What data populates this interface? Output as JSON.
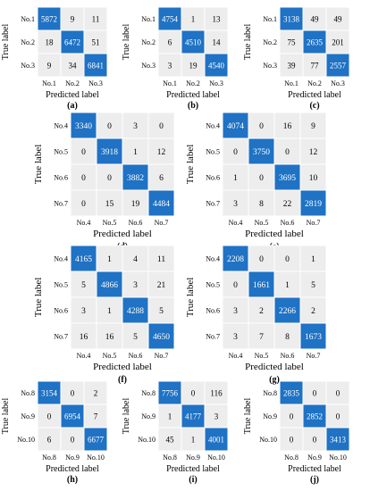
{
  "chart_data": [
    {
      "type": "heatmap",
      "caption": "(a)",
      "xlabel": "Predicted label",
      "ylabel": "True label",
      "x_categories": [
        "No.1",
        "No.2",
        "No.3"
      ],
      "y_categories": [
        "No.1",
        "No.2",
        "No.3"
      ],
      "values": [
        [
          5872,
          9,
          11
        ],
        [
          18,
          6472,
          51
        ],
        [
          9,
          34,
          6841
        ]
      ]
    },
    {
      "type": "heatmap",
      "caption": "(b)",
      "xlabel": "Predicted label",
      "ylabel": "True label",
      "x_categories": [
        "No.1",
        "No.2",
        "No.3"
      ],
      "y_categories": [
        "No.1",
        "No.2",
        "No.3"
      ],
      "values": [
        [
          4754,
          1,
          13
        ],
        [
          6,
          4510,
          14
        ],
        [
          3,
          19,
          4540
        ]
      ]
    },
    {
      "type": "heatmap",
      "caption": "(c)",
      "xlabel": "Predicted label",
      "ylabel": "True label",
      "x_categories": [
        "No.1",
        "No.2",
        "No.3"
      ],
      "y_categories": [
        "No.1",
        "No.2",
        "No.3"
      ],
      "values": [
        [
          3138,
          49,
          49
        ],
        [
          75,
          2635,
          201
        ],
        [
          39,
          77,
          2557
        ]
      ]
    },
    {
      "type": "heatmap",
      "caption": "(d)",
      "xlabel": "Predicted label",
      "ylabel": "True label",
      "x_categories": [
        "No.4",
        "No.5",
        "No.6",
        "No.7"
      ],
      "y_categories": [
        "No.4",
        "No.5",
        "No.6",
        "No.7"
      ],
      "values": [
        [
          3340,
          0,
          3,
          0
        ],
        [
          0,
          3918,
          1,
          12
        ],
        [
          0,
          0,
          3882,
          6
        ],
        [
          0,
          15,
          19,
          4484
        ]
      ]
    },
    {
      "type": "heatmap",
      "caption": "(e)",
      "xlabel": "Predicted label",
      "ylabel": "True label",
      "x_categories": [
        "No.4",
        "No.5",
        "No.6",
        "No.7"
      ],
      "y_categories": [
        "No.4",
        "No.5",
        "No.6",
        "No.7"
      ],
      "values": [
        [
          4074,
          0,
          16,
          9
        ],
        [
          0,
          3750,
          0,
          12
        ],
        [
          1,
          0,
          3695,
          10
        ],
        [
          3,
          8,
          22,
          2819
        ]
      ]
    },
    {
      "type": "heatmap",
      "caption": "(f)",
      "xlabel": "Predicted label",
      "ylabel": "True label",
      "x_categories": [
        "No.4",
        "No.5",
        "No.6",
        "No.7"
      ],
      "y_categories": [
        "No.4",
        "No.5",
        "No.6",
        "No.7"
      ],
      "values": [
        [
          4165,
          1,
          4,
          11
        ],
        [
          5,
          4866,
          3,
          21
        ],
        [
          3,
          1,
          4288,
          5
        ],
        [
          16,
          16,
          5,
          4650
        ]
      ]
    },
    {
      "type": "heatmap",
      "caption": "(g)",
      "xlabel": "Predicted label",
      "ylabel": "True label",
      "x_categories": [
        "No.4",
        "No.5",
        "No.6",
        "No.7"
      ],
      "y_categories": [
        "No.4",
        "No.5",
        "No.6",
        "No.7"
      ],
      "values": [
        [
          2208,
          0,
          0,
          1
        ],
        [
          0,
          1661,
          1,
          5
        ],
        [
          3,
          2,
          2266,
          2
        ],
        [
          3,
          7,
          8,
          1673
        ]
      ]
    },
    {
      "type": "heatmap",
      "caption": "(h)",
      "xlabel": "Predicted label",
      "ylabel": "True label",
      "x_categories": [
        "No.8",
        "No.9",
        "No.10"
      ],
      "y_categories": [
        "No.8",
        "No.9",
        "No.10"
      ],
      "values": [
        [
          3154,
          0,
          2
        ],
        [
          0,
          6954,
          7
        ],
        [
          6,
          0,
          6677
        ]
      ]
    },
    {
      "type": "heatmap",
      "caption": "(i)",
      "xlabel": "Predicted label",
      "ylabel": "True label",
      "x_categories": [
        "No.8",
        "No.9",
        "No.10"
      ],
      "y_categories": [
        "No.8",
        "No.9",
        "No.10"
      ],
      "values": [
        [
          7756,
          0,
          116
        ],
        [
          1,
          4177,
          3
        ],
        [
          45,
          1,
          4001
        ]
      ]
    },
    {
      "type": "heatmap",
      "caption": "(j)",
      "xlabel": "Predicted label",
      "ylabel": "True label",
      "x_categories": [
        "No.8",
        "No.9",
        "No.10"
      ],
      "y_categories": [
        "No.8",
        "No.9",
        "No.10"
      ],
      "values": [
        [
          2835,
          0,
          0
        ],
        [
          0,
          2852,
          0
        ],
        [
          0,
          0,
          3413
        ]
      ]
    }
  ],
  "colors": {
    "diagonal": "#1f72c4",
    "off_diagonal": "#ededed",
    "grid": "#ffffff",
    "text_light": "#ffffff",
    "text_dark": "#000000"
  }
}
